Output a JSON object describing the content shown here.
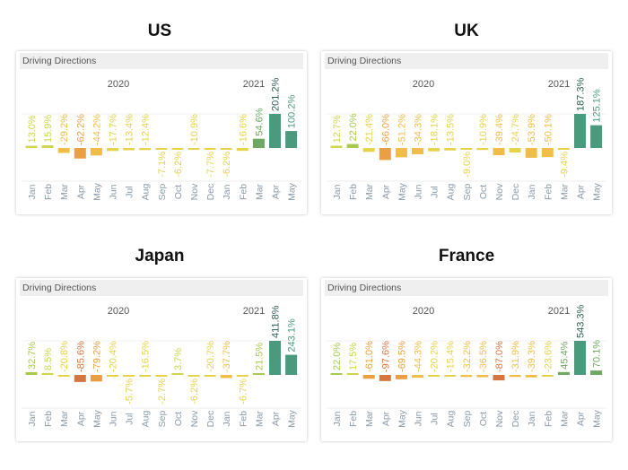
{
  "chart_data": [
    {
      "type": "bar",
      "title": "US",
      "subtitle": "Driving Directions",
      "years": [
        "2020",
        "2021"
      ],
      "categories": [
        "Jan",
        "Feb",
        "Mar",
        "Apr",
        "May",
        "Jun",
        "Jul",
        "Aug",
        "Sep",
        "Oct",
        "Nov",
        "Dec",
        "Jan",
        "Feb",
        "Mar",
        "Apr",
        "May"
      ],
      "values": [
        13.0,
        15.9,
        -29.2,
        -62.2,
        -44.2,
        -17.7,
        -13.4,
        -12.4,
        -7.1,
        -6.2,
        -10.9,
        -7.7,
        -6.2,
        -16.6,
        54.6,
        201.2,
        100.2
      ],
      "labels": [
        "13.0%",
        "15.9%",
        "-29.2%",
        "-62.2%",
        "-44.2%",
        "-17.7%",
        "-13.4%",
        "-12.4%",
        "-7.1%",
        "-6.2%",
        "-10.9%",
        "-7.7%",
        "-6.2%",
        "-16.6%",
        "54.6%",
        "201.2%",
        "100.2%"
      ],
      "label_side": [
        "above",
        "above",
        "above",
        "above",
        "above",
        "above",
        "above",
        "above",
        "below",
        "below",
        "above",
        "below",
        "below",
        "above",
        "above",
        "above",
        "above"
      ]
    },
    {
      "type": "bar",
      "title": "UK",
      "subtitle": "Driving Directions",
      "years": [
        "2020",
        "2021"
      ],
      "categories": [
        "Jan",
        "Feb",
        "Mar",
        "Apr",
        "May",
        "Jun",
        "Jul",
        "Aug",
        "Sep",
        "Oct",
        "Nov",
        "Dec",
        "Jan",
        "Feb",
        "Mar",
        "Apr",
        "May"
      ],
      "values": [
        12.7,
        22.0,
        -21.4,
        -66.0,
        -51.2,
        -34.3,
        -18.1,
        -13.5,
        -9.0,
        -10.9,
        -39.4,
        -24.7,
        -53.9,
        -50.1,
        -9.4,
        187.3,
        125.1
      ],
      "labels": [
        "12.7%",
        "22.0%",
        "-21.4%",
        "-66.0%",
        "-51.2%",
        "-34.3%",
        "-18.1%",
        "-13.5%",
        "-9.0%",
        "-10.9%",
        "-39.4%",
        "-24.7%",
        "-53.9%",
        "-50.1%",
        "-9.4%",
        "187.3%",
        "125.1%"
      ],
      "label_side": [
        "above",
        "above",
        "above",
        "above",
        "above",
        "above",
        "above",
        "above",
        "below",
        "above",
        "above",
        "above",
        "above",
        "above",
        "below",
        "above",
        "above"
      ]
    },
    {
      "type": "bar",
      "title": "Japan",
      "subtitle": "Driving Directions",
      "years": [
        "2020",
        "2021"
      ],
      "categories": [
        "Jan",
        "Feb",
        "Mar",
        "Apr",
        "May",
        "Jun",
        "Jul",
        "Aug",
        "Sep",
        "Oct",
        "Nov",
        "Dec",
        "Jan",
        "Feb",
        "Mar",
        "Apr",
        "May"
      ],
      "values": [
        32.7,
        8.5,
        -20.8,
        -85.6,
        -79.2,
        -20.4,
        -5.7,
        -16.5,
        -2.7,
        3.7,
        -6.2,
        -20.7,
        -37.7,
        -6.7,
        21.5,
        411.8,
        243.1
      ],
      "labels": [
        "32.7%",
        "8.5%",
        "-20.8%",
        "-85.6%",
        "-79.2%",
        "-20.4%",
        "-5.7%",
        "-16.5%",
        "-2.7%",
        "3.7%",
        "-6.2%",
        "-20.7%",
        "-37.7%",
        "-6.7%",
        "21.5%",
        "411.8%",
        "243.1%"
      ],
      "label_side": [
        "above",
        "above",
        "above",
        "above",
        "above",
        "above",
        "below",
        "above",
        "below",
        "above",
        "below",
        "above",
        "above",
        "below",
        "above",
        "above",
        "above"
      ]
    },
    {
      "type": "bar",
      "title": "France",
      "subtitle": "Driving Directions",
      "years": [
        "2020",
        "2021"
      ],
      "categories": [
        "Jan",
        "Feb",
        "Mar",
        "Apr",
        "May",
        "Jun",
        "Jul",
        "Aug",
        "Sep",
        "Oct",
        "Nov",
        "Dec",
        "Jan",
        "Feb",
        "Mar",
        "Apr",
        "May"
      ],
      "values": [
        22.0,
        17.5,
        -61.0,
        -97.6,
        -69.5,
        -44.3,
        -20.2,
        -15.4,
        -32.2,
        -36.5,
        -87.0,
        -31.9,
        -39.3,
        -23.6,
        45.4,
        543.3,
        70.1
      ],
      "labels": [
        "22.0%",
        "17.5%",
        "-61.0%",
        "-97.6%",
        "-69.5%",
        "-44.3%",
        "-20.2%",
        "-15.4%",
        "-32.2%",
        "-36.5%",
        "-87.0%",
        "-31.9%",
        "-39.3%",
        "-23.6%",
        "45.4%",
        "543.3%",
        "70.1%"
      ],
      "label_side": [
        "above",
        "above",
        "above",
        "above",
        "above",
        "above",
        "above",
        "above",
        "above",
        "above",
        "above",
        "above",
        "above",
        "above",
        "above",
        "above",
        "above"
      ]
    }
  ]
}
